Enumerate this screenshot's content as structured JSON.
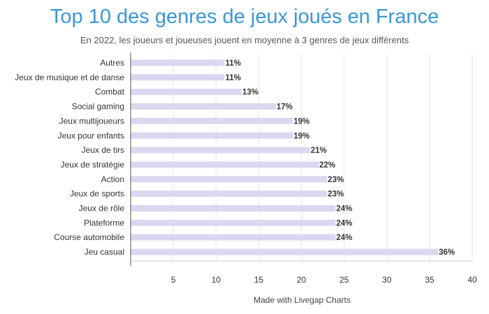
{
  "title": "Top 10 des genres de jeux joués en France",
  "subtitle": "En 2022, les joueurs et joueuses jouent en moyenne à 3 genres de jeux différents",
  "credit": "Made with Livegap Charts",
  "colors": {
    "title": "#3a98d8",
    "bar": "#dcd7f0",
    "grid": "#e6e6e6",
    "axis": "#555555",
    "label": "#333333"
  },
  "chart_data": {
    "type": "bar",
    "orientation": "horizontal",
    "categories": [
      "Autres",
      "Jeux de musique et de danse",
      "Combat",
      "Social gaming",
      "Jeux multijoueurs",
      "Jeux pour enfants",
      "Jeux de tirs",
      "Jeux de stratégie",
      "Action",
      "Jeux de sports",
      "Jeux de rôle",
      "Plateforme",
      "Course automobile",
      "Jeu casual"
    ],
    "values": [
      11,
      11,
      13,
      17,
      19,
      19,
      21,
      22,
      23,
      23,
      24,
      24,
      24,
      36
    ],
    "value_labels": [
      "11%",
      "11%",
      "13%",
      "17%",
      "19%",
      "19%",
      "21%",
      "22%",
      "23%",
      "23%",
      "24%",
      "24%",
      "24%",
      "36%"
    ],
    "xlim": [
      0,
      40
    ],
    "xticks": [
      5,
      10,
      15,
      20,
      25,
      30,
      35,
      40
    ],
    "xtick_labels": [
      "5",
      "10",
      "15",
      "20",
      "25",
      "30",
      "35",
      "40"
    ],
    "grid": true,
    "legend": "none"
  }
}
